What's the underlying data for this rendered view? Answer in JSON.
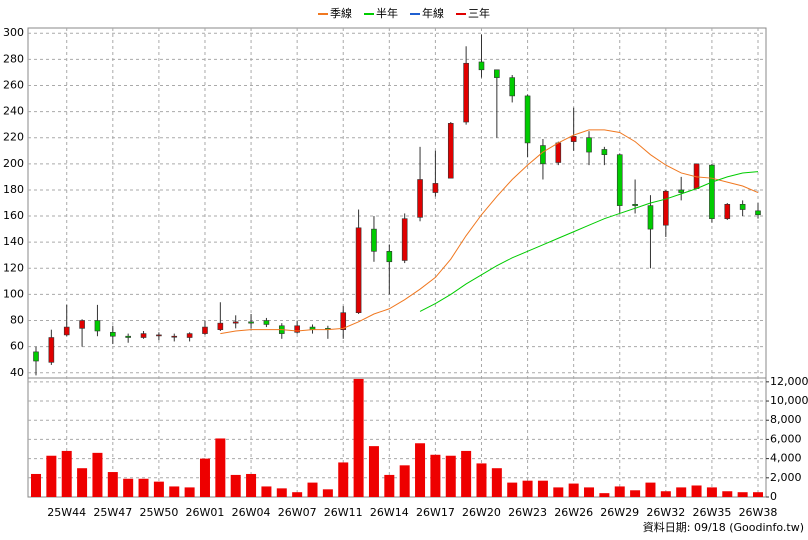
{
  "chart_data": [
    {
      "type": "candlestick",
      "categories": [
        null,
        null,
        "25W44",
        null,
        null,
        "25W47",
        null,
        null,
        "25W50",
        null,
        null,
        "26W01",
        null,
        null,
        "26W04",
        null,
        null,
        "26W07",
        null,
        null,
        "26W11",
        null,
        null,
        "26W14",
        null,
        null,
        "26W17",
        null,
        null,
        "26W20",
        null,
        null,
        "26W23",
        null,
        null,
        "26W26",
        null,
        null,
        "26W29",
        null,
        null,
        "26W32",
        null,
        null,
        "26W35",
        null,
        null,
        "26W38"
      ],
      "open": [
        56,
        48,
        69,
        74,
        80,
        71,
        68,
        67,
        69,
        68,
        67,
        70,
        73,
        78,
        79,
        80,
        76,
        71,
        75,
        74,
        73,
        86,
        150,
        133,
        126,
        159,
        178,
        189,
        232,
        278,
        272,
        266,
        252,
        214,
        201,
        217,
        220,
        211,
        207,
        169,
        168,
        153,
        180,
        181,
        199,
        158,
        169,
        164
      ],
      "high": [
        60,
        73,
        92,
        81,
        92,
        76,
        70,
        72,
        71,
        70,
        71,
        80,
        94,
        84,
        85,
        82,
        78,
        80,
        77,
        76,
        91,
        165,
        160,
        138,
        162,
        213,
        210,
        232,
        290,
        299,
        272,
        268,
        253,
        219,
        217,
        243,
        225,
        213,
        208,
        188,
        176,
        180,
        190,
        200,
        200,
        170,
        172,
        170
      ],
      "low": [
        38,
        46,
        68,
        60,
        68,
        62,
        63,
        66,
        65,
        64,
        64,
        69,
        72,
        74,
        74,
        75,
        66,
        70,
        70,
        66,
        66,
        85,
        125,
        100,
        124,
        156,
        175,
        190,
        230,
        266,
        220,
        247,
        205,
        188,
        199,
        210,
        199,
        199,
        162,
        162,
        120,
        144,
        172,
        181,
        155,
        157,
        160,
        158
      ],
      "close": [
        49,
        67,
        75,
        80,
        72,
        68,
        67,
        70,
        69,
        68,
        70,
        75,
        78,
        79,
        78,
        77,
        70,
        76,
        73,
        73,
        86,
        151,
        133,
        125,
        158,
        188,
        185,
        231,
        277,
        272,
        266,
        252,
        216,
        200,
        216,
        221,
        209,
        207,
        168,
        168,
        150,
        179,
        178,
        200,
        158,
        169,
        165,
        161
      ],
      "up_color": "#e00000",
      "down_color": "#00cc00",
      "series": [
        {
          "name": "季線",
          "color": "#f07820",
          "values": [
            null,
            null,
            null,
            null,
            null,
            null,
            null,
            null,
            null,
            null,
            null,
            null,
            70,
            72,
            73,
            73,
            73,
            72,
            73,
            73,
            74,
            79,
            85,
            89,
            96,
            104,
            113,
            127,
            145,
            161,
            175,
            188,
            199,
            209,
            216,
            222,
            226,
            226,
            224,
            217,
            207,
            199,
            193,
            190,
            189,
            186,
            183,
            178
          ]
        },
        {
          "name": "半年",
          "color": "#00cc00",
          "values": [
            null,
            null,
            null,
            null,
            null,
            null,
            null,
            null,
            null,
            null,
            null,
            null,
            null,
            null,
            null,
            null,
            null,
            null,
            null,
            null,
            null,
            null,
            null,
            null,
            null,
            87,
            93,
            100,
            108,
            115,
            122,
            128,
            133,
            138,
            143,
            148,
            153,
            158,
            162,
            166,
            170,
            173,
            177,
            181,
            186,
            190,
            193,
            194
          ]
        },
        {
          "name": "年線",
          "color": "#1f5fd0",
          "values": [
            null,
            null,
            null,
            null,
            null,
            null,
            null,
            null,
            null,
            null,
            null,
            null,
            null,
            null,
            null,
            null,
            null,
            null,
            null,
            null,
            null,
            null,
            null,
            null,
            null,
            null,
            null,
            null,
            null,
            null,
            null,
            null,
            null,
            null,
            null,
            null,
            null,
            null,
            null,
            null,
            null,
            null,
            null,
            null,
            null,
            null,
            null,
            null
          ]
        },
        {
          "name": "三年",
          "color": "#e00000",
          "values": [
            null,
            null,
            null,
            null,
            null,
            null,
            null,
            null,
            null,
            null,
            null,
            null,
            null,
            null,
            null,
            null,
            null,
            null,
            null,
            null,
            null,
            null,
            null,
            null,
            null,
            null,
            null,
            null,
            null,
            null,
            null,
            null,
            null,
            null,
            null,
            null,
            null,
            null,
            null,
            null,
            null,
            null,
            null,
            null,
            null,
            null,
            null,
            null
          ]
        }
      ],
      "ylim": [
        36,
        304
      ],
      "yticks": [
        40,
        60,
        80,
        100,
        120,
        140,
        160,
        180,
        200,
        220,
        240,
        260,
        280,
        300
      ],
      "grid": true
    },
    {
      "type": "bar",
      "color": "#ee0000",
      "values": [
        2400,
        4300,
        4800,
        3000,
        4600,
        2600,
        1900,
        1900,
        1600,
        1100,
        1000,
        4000,
        6100,
        2300,
        2400,
        1100,
        900,
        500,
        1500,
        800,
        3600,
        12300,
        5300,
        2300,
        3300,
        5600,
        4400,
        4300,
        4800,
        3500,
        3000,
        1500,
        1700,
        1700,
        1000,
        1400,
        1000,
        400,
        1100,
        700,
        1500,
        600,
        1000,
        1200,
        1000,
        600,
        500,
        500
      ],
      "ylim": [
        0,
        12400
      ],
      "yticks": [
        0,
        {
          "value": 2000,
          "label": "2,000"
        },
        {
          "value": 4000,
          "label": "4,000"
        },
        {
          "value": 6000,
          "label": "6,000"
        },
        {
          "value": 8000,
          "label": "8,000"
        },
        {
          "value": 10000,
          "label": "10,000"
        },
        {
          "value": 12000,
          "label": "12,000"
        }
      ],
      "grid": true
    }
  ],
  "footer": "資料日期: 09/18 (Goodinfo.tw)"
}
